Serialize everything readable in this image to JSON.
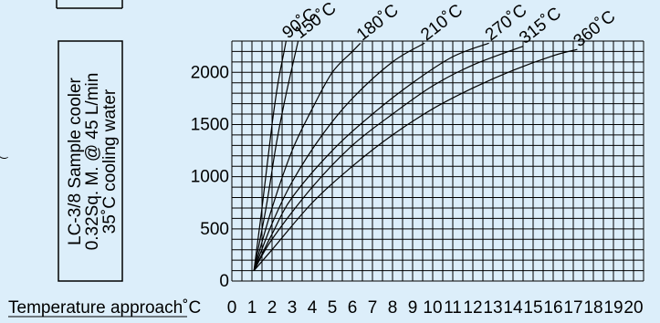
{
  "chart_data": {
    "type": "line",
    "title": "",
    "xlabel": "Temperature approach˚C",
    "ylabel": "",
    "xlim": [
      0,
      20
    ],
    "ylim": [
      0,
      2300
    ],
    "grid": true,
    "x_ticks": [
      "0",
      "1",
      "2",
      "3",
      "4",
      "5",
      "6",
      "7",
      "8",
      "9",
      "10",
      "11",
      "12",
      "13",
      "14",
      "15",
      "16",
      "17",
      "18",
      "19",
      "20"
    ],
    "y_ticks": [
      "0",
      "500",
      "1000",
      "1500",
      "2000"
    ],
    "series": [
      {
        "name": "90˚C",
        "x": [
          1.1,
          1.5,
          2.0,
          2.3,
          2.6,
          2.7
        ],
        "y": [
          100,
          700,
          1500,
          1900,
          2200,
          2300
        ]
      },
      {
        "name": "150˚C",
        "x": [
          1.1,
          1.7,
          2.2,
          2.6,
          3.0,
          3.3
        ],
        "y": [
          100,
          700,
          1300,
          1700,
          2050,
          2300
        ]
      },
      {
        "name": "180˚C",
        "x": [
          1.1,
          2.0,
          3.0,
          4.0,
          5.0,
          6.0,
          6.4
        ],
        "y": [
          100,
          700,
          1250,
          1650,
          2000,
          2200,
          2280
        ]
      },
      {
        "name": "210˚C",
        "x": [
          1.1,
          2.0,
          3.0,
          4.5,
          6.0,
          8.0,
          9.6
        ],
        "y": [
          100,
          550,
          950,
          1400,
          1750,
          2100,
          2280
        ]
      },
      {
        "name": "270˚C",
        "x": [
          1.1,
          2.0,
          3.0,
          5.0,
          7.0,
          9.0,
          11.0,
          12.8
        ],
        "y": [
          100,
          450,
          800,
          1250,
          1600,
          1900,
          2150,
          2280
        ]
      },
      {
        "name": "315˚C",
        "x": [
          1.1,
          2.0,
          4.0,
          6.0,
          8.0,
          10.0,
          12.0,
          14.5
        ],
        "y": [
          100,
          400,
          900,
          1300,
          1600,
          1870,
          2070,
          2250
        ]
      },
      {
        "name": "360˚C",
        "x": [
          1.1,
          2.0,
          4.0,
          6.0,
          8.0,
          10.0,
          12.0,
          14.0,
          16.0,
          17.2
        ],
        "y": [
          100,
          300,
          750,
          1100,
          1400,
          1650,
          1850,
          2020,
          2160,
          2220
        ]
      }
    ],
    "annotations": [
      "LC-3/8 Sample cooler",
      "0.32Sq. M. @ 45 L/min",
      "35˚C cooling water"
    ]
  }
}
